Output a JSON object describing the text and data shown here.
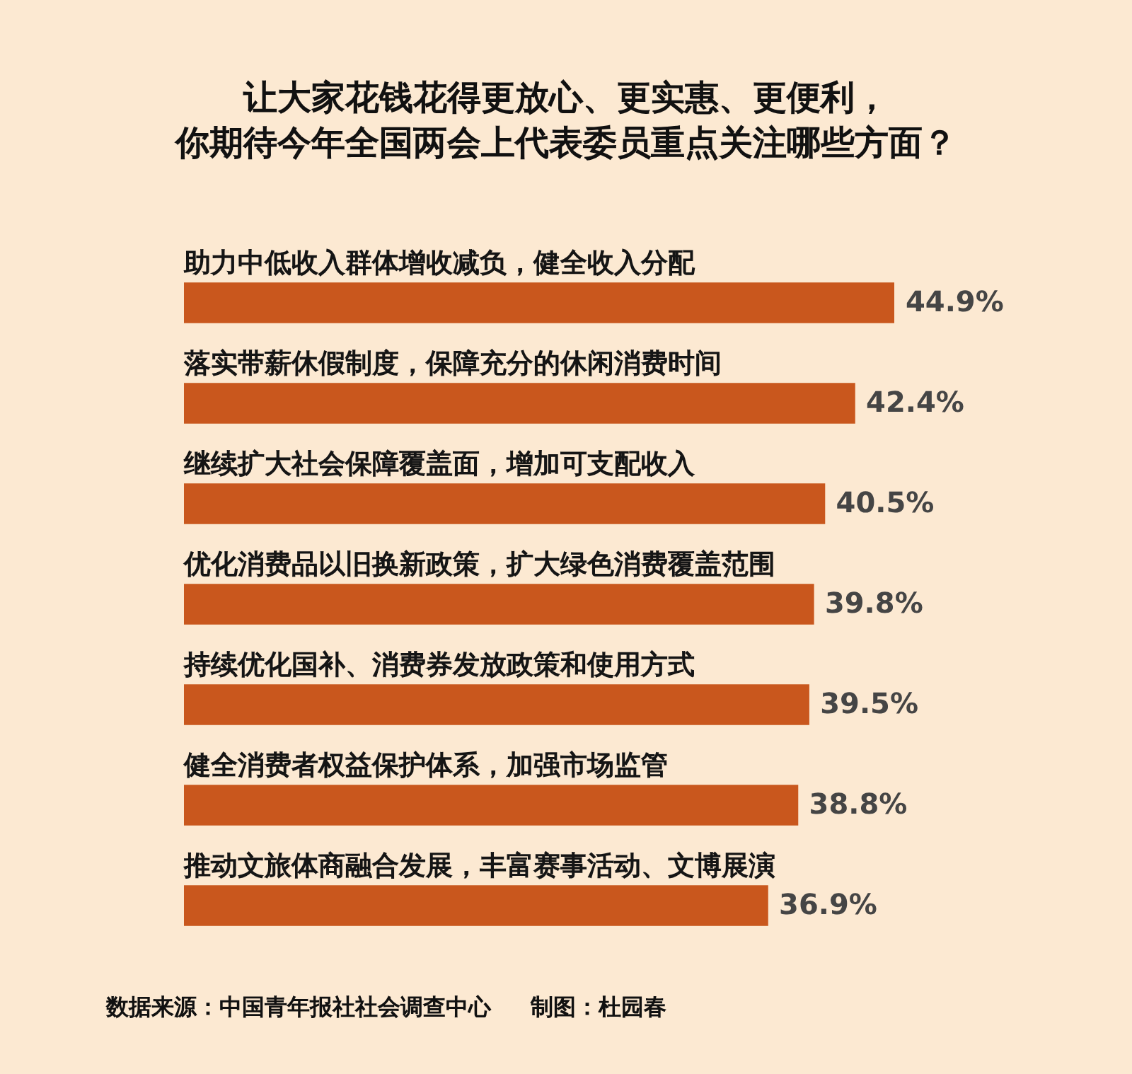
{
  "chart_data": {
    "type": "bar",
    "orientation": "horizontal",
    "title": "让大家花钱花得更放心、更实惠、更便利，你期待今年全国两会上代表委员重点关注哪些方面？",
    "categories": [
      "助力中低收入群体增收减负，健全收入分配",
      "落实带薪休假制度，保障充分的休闲消费时间",
      "继续扩大社会保障覆盖面，增加可支配收入",
      "优化消费品以旧换新政策，扩大绿色消费覆盖范围",
      "持续优化国补、消费券发放政策和使用方式",
      "健全消费者权益保护体系，加强市场监管",
      "推动文旅体商融合发展，丰富赛事活动、文博展演"
    ],
    "values": [
      44.9,
      42.4,
      40.5,
      39.8,
      39.5,
      38.8,
      36.9
    ],
    "value_labels": [
      "44.9%",
      "42.4%",
      "40.5%",
      "39.8%",
      "39.5%",
      "38.8%",
      "36.9%"
    ],
    "color": "#c9571d",
    "annotations": [
      "数据来源：中国青年报社社会调查中心",
      "制图：杜园春"
    ]
  }
}
